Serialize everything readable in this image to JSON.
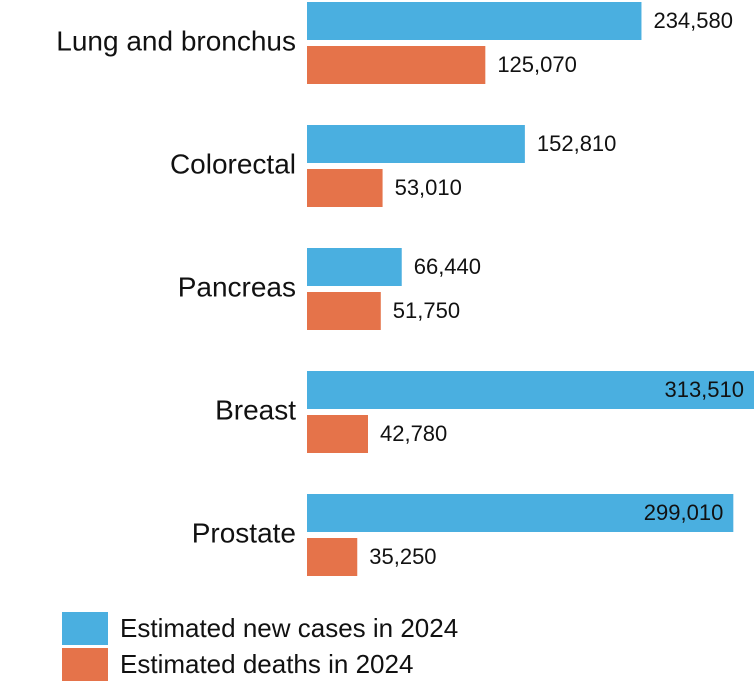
{
  "chart_data": {
    "type": "bar",
    "orientation": "horizontal",
    "categories": [
      "Lung and bronchus",
      "Colorectal",
      "Pancreas",
      "Breast",
      "Prostate"
    ],
    "series": [
      {
        "name": "Estimated new cases in 2024",
        "color": "#4aafe0",
        "values": [
          234580,
          152810,
          66440,
          313510,
          299010
        ],
        "value_labels": [
          "234,580",
          "152,810",
          "66,440",
          "313,510",
          "299,010"
        ]
      },
      {
        "name": "Estimated deaths in 2024",
        "color": "#e5734a",
        "values": [
          125070,
          53010,
          51750,
          42780,
          35250
        ],
        "value_labels": [
          "125,070",
          "53,010",
          "51,750",
          "42,780",
          "35,250"
        ]
      }
    ],
    "legend": "bottom-left"
  }
}
